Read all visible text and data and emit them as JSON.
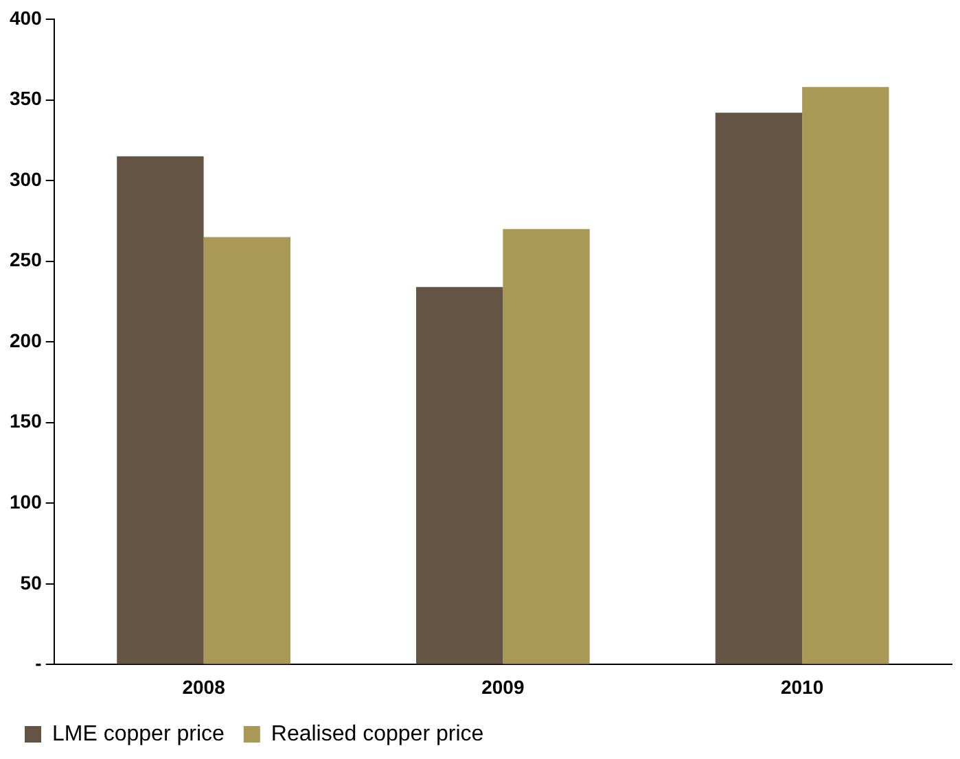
{
  "chart_data": {
    "type": "bar",
    "categories": [
      "2008",
      "2009",
      "2010"
    ],
    "series": [
      {
        "name": "LME copper price",
        "color": "#635443",
        "values": [
          315,
          234,
          342
        ]
      },
      {
        "name": "Realised copper price",
        "color": "#a99856",
        "values": [
          265,
          270,
          358
        ]
      }
    ],
    "ylim": [
      0,
      400
    ],
    "yticks": [
      {
        "value": 0,
        "label": "-"
      },
      50,
      100,
      150,
      200,
      250,
      300,
      350,
      400
    ],
    "grid": false,
    "legend": "bottom"
  }
}
